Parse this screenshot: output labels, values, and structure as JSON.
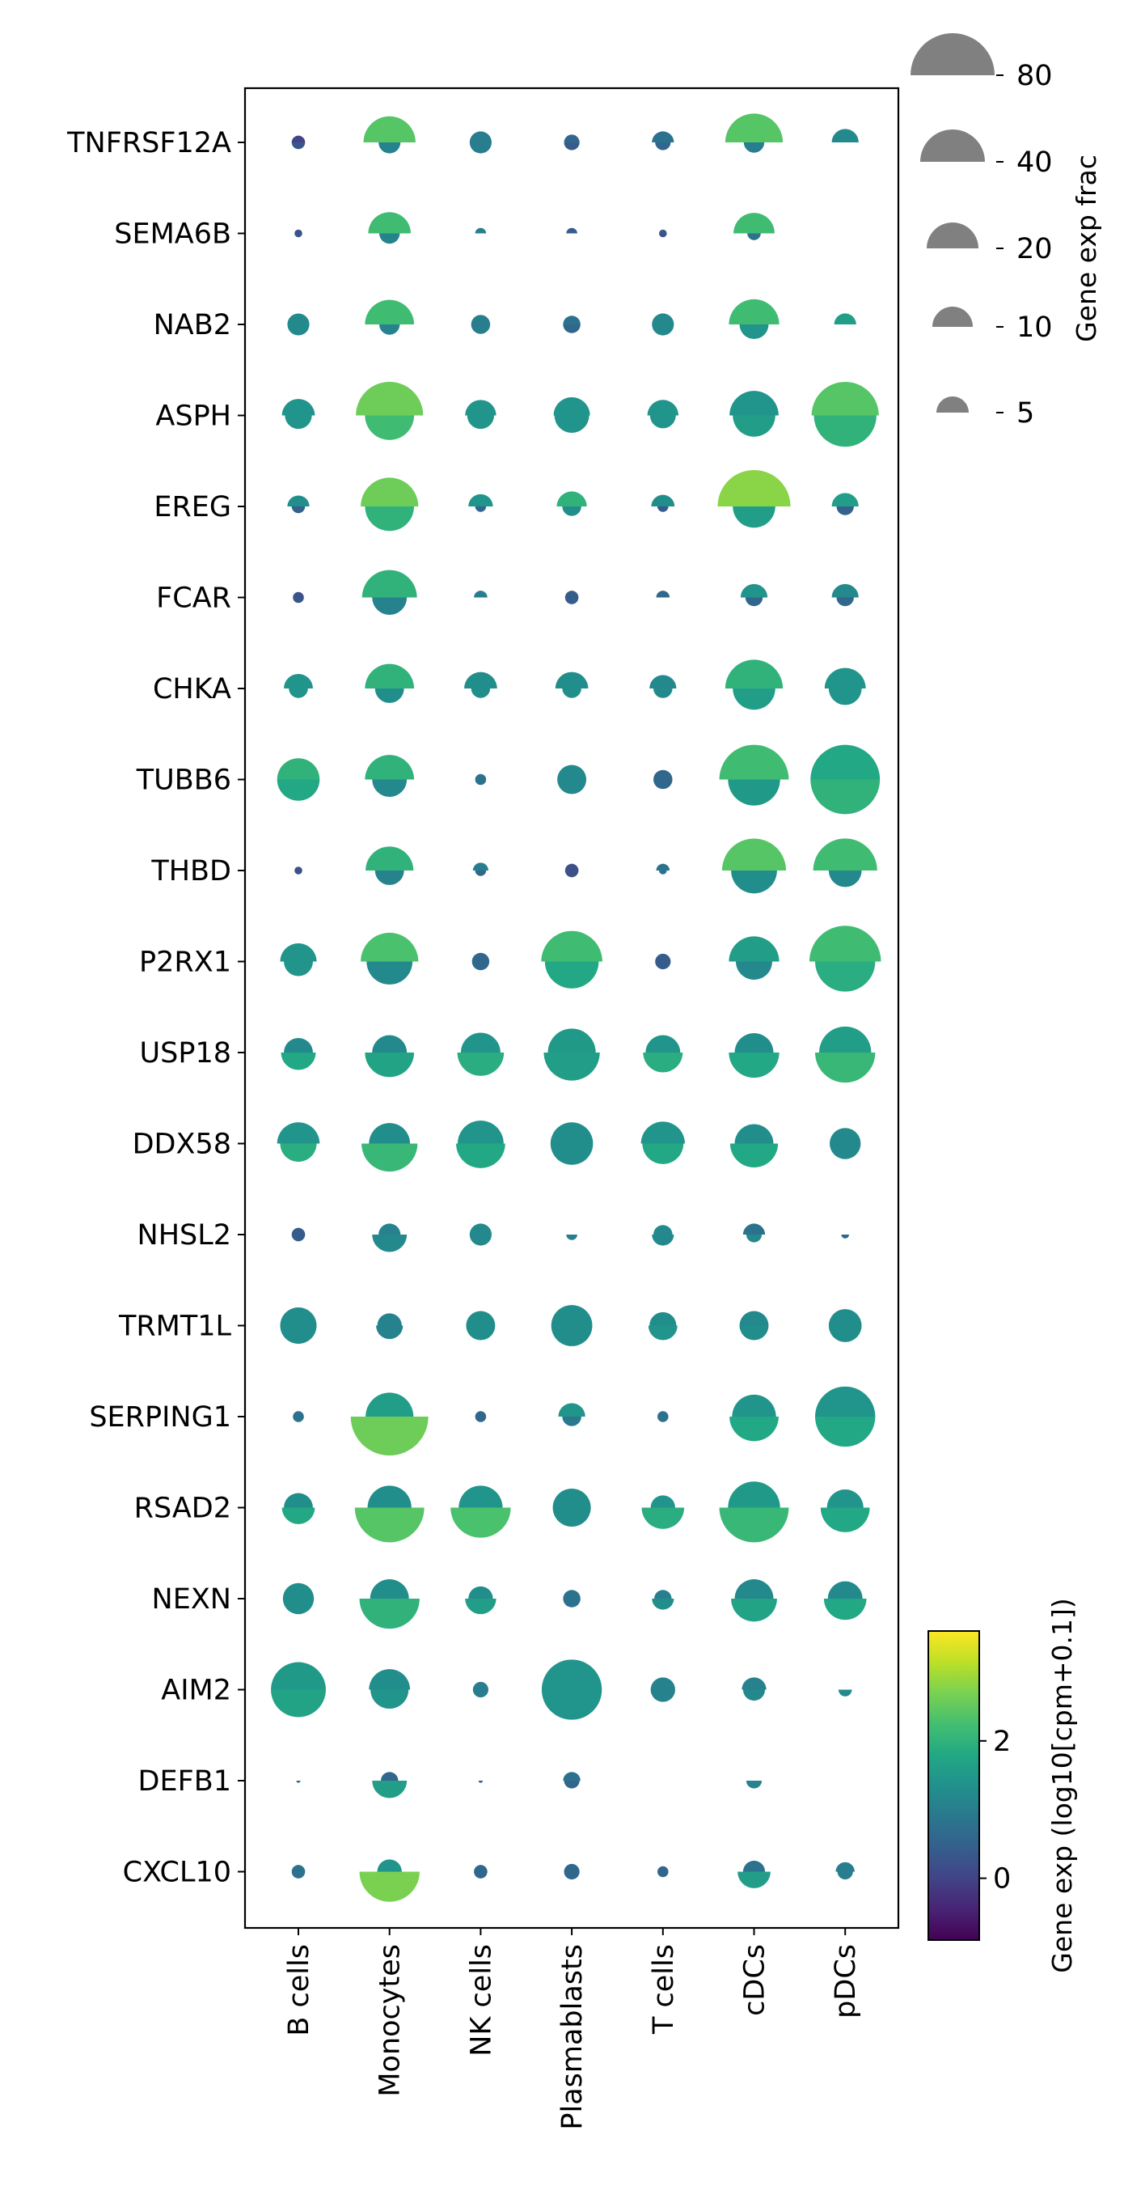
{
  "chart_data": {
    "type": "split-dot",
    "genes": [
      "TNFRSF12A",
      "SEMA6B",
      "NAB2",
      "ASPH",
      "EREG",
      "FCAR",
      "CHKA",
      "TUBB6",
      "THBD",
      "P2RX1",
      "USP18",
      "DDX58",
      "NHSL2",
      "TRMT1L",
      "SERPING1",
      "RSAD2",
      "NEXN",
      "AIM2",
      "DEFB1",
      "CXCL10"
    ],
    "cell_types": [
      "B cells",
      "Monocytes",
      "NK cells",
      "Plasmablasts",
      "T cells",
      "cDCs",
      "pDCs"
    ],
    "encoding": {
      "semicircle_size": "fraction of cells expressing (%)",
      "color": "mean expression log10(cpm+0.1)"
    },
    "size_legend": {
      "title": "Gene exp frac",
      "values": [
        80,
        40,
        20,
        10,
        5
      ]
    },
    "colorbar": {
      "label": "Gene exp (log10[cpm+0.1])",
      "colormap": "viridis",
      "vmin": -0.9,
      "vmax": 3.6,
      "ticks": [
        0,
        2
      ]
    },
    "values": [
      [
        [
          0.0,
          3,
          0.3,
          3
        ],
        [
          2.4,
          45,
          1.1,
          8
        ],
        [
          1.0,
          8,
          1.0,
          8
        ],
        [
          0.6,
          4,
          0.4,
          4
        ],
        [
          0.8,
          8,
          0.6,
          4
        ],
        [
          2.4,
          55,
          1.0,
          7
        ],
        [
          1.2,
          12,
          null,
          0
        ]
      ],
      [
        [
          0.2,
          1,
          0.3,
          1
        ],
        [
          2.2,
          30,
          1.1,
          7
        ],
        [
          1.0,
          2,
          null,
          0
        ],
        [
          0.4,
          2,
          null,
          0
        ],
        [
          0.4,
          1,
          0.2,
          1
        ],
        [
          2.2,
          28,
          0.8,
          3
        ],
        [
          null,
          0,
          null,
          0
        ]
      ],
      [
        [
          1.2,
          8,
          1.2,
          8
        ],
        [
          2.2,
          40,
          1.1,
          7
        ],
        [
          1.0,
          6,
          1.0,
          6
        ],
        [
          0.8,
          5,
          0.6,
          5
        ],
        [
          1.2,
          8,
          1.2,
          8
        ],
        [
          2.2,
          42,
          1.4,
          14
        ],
        [
          1.6,
          8,
          null,
          0
        ]
      ],
      [
        [
          1.4,
          18,
          1.4,
          12
        ],
        [
          2.6,
          75,
          2.2,
          40
        ],
        [
          1.4,
          16,
          1.4,
          12
        ],
        [
          1.4,
          22,
          1.4,
          20
        ],
        [
          1.4,
          16,
          1.4,
          11
        ],
        [
          1.4,
          40,
          1.6,
          30
        ],
        [
          2.4,
          75,
          2.0,
          65
        ]
      ],
      [
        [
          1.3,
          8,
          0.5,
          3
        ],
        [
          2.6,
          55,
          2.0,
          40
        ],
        [
          1.4,
          10,
          0.6,
          2
        ],
        [
          2.0,
          15,
          1.3,
          6
        ],
        [
          1.3,
          9,
          0.4,
          2
        ],
        [
          2.8,
          88,
          1.6,
          30
        ],
        [
          1.6,
          12,
          0.5,
          5
        ]
      ],
      [
        [
          0.2,
          2,
          0.3,
          2
        ],
        [
          2.0,
          50,
          1.1,
          20
        ],
        [
          1.0,
          3,
          null,
          0
        ],
        [
          0.4,
          3,
          0.4,
          3
        ],
        [
          0.6,
          3,
          null,
          0
        ],
        [
          1.4,
          12,
          0.6,
          5
        ],
        [
          1.2,
          12,
          0.6,
          5
        ]
      ],
      [
        [
          1.4,
          14,
          1.4,
          6
        ],
        [
          2.0,
          40,
          1.3,
          14
        ],
        [
          1.3,
          18,
          1.3,
          6
        ],
        [
          1.3,
          18,
          1.3,
          6
        ],
        [
          1.2,
          12,
          1.2,
          6
        ],
        [
          2.0,
          55,
          1.6,
          30
        ],
        [
          1.4,
          28,
          1.4,
          18
        ]
      ],
      [
        [
          2.0,
          30,
          1.8,
          30
        ],
        [
          2.0,
          40,
          1.2,
          20
        ],
        [
          0.8,
          2,
          0.8,
          2
        ],
        [
          1.2,
          14,
          1.2,
          14
        ],
        [
          0.6,
          6,
          0.6,
          6
        ],
        [
          2.2,
          80,
          1.5,
          45
        ],
        [
          1.8,
          80,
          2.0,
          80
        ]
      ],
      [
        [
          0.2,
          1,
          0.2,
          1
        ],
        [
          2.0,
          38,
          1.1,
          14
        ],
        [
          1.0,
          4,
          0.6,
          2
        ],
        [
          0.2,
          3,
          0.2,
          3
        ],
        [
          0.8,
          3,
          0.8,
          1
        ],
        [
          2.4,
          68,
          1.3,
          35
        ],
        [
          2.2,
          68,
          1.2,
          18
        ]
      ],
      [
        [
          1.4,
          22,
          1.4,
          14
        ],
        [
          2.3,
          55,
          1.2,
          35
        ],
        [
          0.6,
          5,
          0.6,
          5
        ],
        [
          2.2,
          62,
          1.8,
          48
        ],
        [
          0.4,
          4,
          0.4,
          4
        ],
        [
          1.6,
          42,
          1.2,
          22
        ],
        [
          2.2,
          85,
          1.9,
          60
        ]
      ],
      [
        [
          1.2,
          14,
          1.8,
          20
        ],
        [
          1.2,
          20,
          1.7,
          40
        ],
        [
          1.4,
          26,
          1.9,
          36
        ],
        [
          1.5,
          38,
          1.6,
          52
        ],
        [
          1.4,
          20,
          1.9,
          26
        ],
        [
          1.3,
          25,
          1.8,
          42
        ],
        [
          1.6,
          45,
          2.1,
          60
        ]
      ],
      [
        [
          1.4,
          30,
          1.9,
          22
        ],
        [
          1.3,
          28,
          2.1,
          52
        ],
        [
          1.4,
          35,
          1.8,
          40
        ],
        [
          1.3,
          30,
          1.3,
          30
        ],
        [
          1.4,
          32,
          1.8,
          28
        ],
        [
          1.3,
          25,
          1.8,
          38
        ],
        [
          1.2,
          16,
          1.2,
          16
        ]
      ],
      [
        [
          0.4,
          3,
          0.4,
          3
        ],
        [
          1.1,
          8,
          1.2,
          20
        ],
        [
          1.2,
          8,
          1.2,
          8
        ],
        [
          1.0,
          0,
          1.0,
          2
        ],
        [
          1.2,
          6,
          1.2,
          8
        ],
        [
          0.8,
          8,
          1.2,
          4
        ],
        [
          0.6,
          0,
          0.6,
          1
        ]
      ],
      [
        [
          1.3,
          22,
          1.3,
          22
        ],
        [
          1.1,
          10,
          1.1,
          12
        ],
        [
          1.3,
          14,
          1.3,
          14
        ],
        [
          1.3,
          28,
          1.3,
          28
        ],
        [
          1.3,
          12,
          1.4,
          14
        ],
        [
          1.2,
          14,
          1.3,
          14
        ],
        [
          1.3,
          18,
          1.3,
          18
        ]
      ],
      [
        [
          0.8,
          2,
          0.8,
          2
        ],
        [
          1.6,
          38,
          2.6,
          100
        ],
        [
          0.6,
          2,
          0.6,
          2
        ],
        [
          1.4,
          12,
          0.9,
          6
        ],
        [
          0.8,
          2,
          0.8,
          2
        ],
        [
          1.4,
          32,
          1.8,
          40
        ],
        [
          1.4,
          60,
          1.8,
          60
        ]
      ],
      [
        [
          1.3,
          14,
          1.8,
          18
        ],
        [
          1.3,
          32,
          2.4,
          80
        ],
        [
          1.4,
          32,
          2.3,
          60
        ],
        [
          1.3,
          24,
          1.3,
          24
        ],
        [
          1.4,
          10,
          1.9,
          30
        ],
        [
          1.5,
          45,
          2.1,
          80
        ],
        [
          1.4,
          22,
          1.8,
          40
        ]
      ],
      [
        [
          1.3,
          16,
          1.3,
          16
        ],
        [
          1.3,
          25,
          2.0,
          60
        ],
        [
          1.3,
          10,
          1.6,
          16
        ],
        [
          0.8,
          5,
          0.8,
          5
        ],
        [
          1.0,
          5,
          1.3,
          8
        ],
        [
          1.2,
          25,
          1.7,
          35
        ],
        [
          1.2,
          20,
          1.8,
          30
        ]
      ],
      [
        [
          1.5,
          50,
          1.7,
          50
        ],
        [
          1.3,
          28,
          1.4,
          24
        ],
        [
          1.0,
          4,
          1.0,
          4
        ],
        [
          1.4,
          60,
          1.4,
          60
        ],
        [
          1.1,
          10,
          1.1,
          10
        ],
        [
          1.1,
          10,
          1.2,
          8
        ],
        [
          1.0,
          0,
          1.2,
          3
        ]
      ],
      [
        [
          null,
          0,
          0.8,
          0.3
        ],
        [
          0.6,
          5,
          1.6,
          20
        ],
        [
          0.4,
          0,
          0.4,
          0.3
        ],
        [
          0.8,
          5,
          0.6,
          4
        ],
        [
          null,
          0,
          null,
          0
        ],
        [
          null,
          0,
          1.1,
          4
        ],
        [
          null,
          0,
          null,
          0
        ]
      ],
      [
        [
          0.8,
          3,
          0.8,
          3
        ],
        [
          1.4,
          10,
          2.7,
          60
        ],
        [
          0.6,
          3,
          0.6,
          3
        ],
        [
          0.6,
          4,
          0.6,
          4
        ],
        [
          0.6,
          2,
          0.6,
          2
        ],
        [
          0.8,
          8,
          1.6,
          18
        ],
        [
          1.0,
          6,
          1.0,
          4
        ]
      ]
    ]
  }
}
